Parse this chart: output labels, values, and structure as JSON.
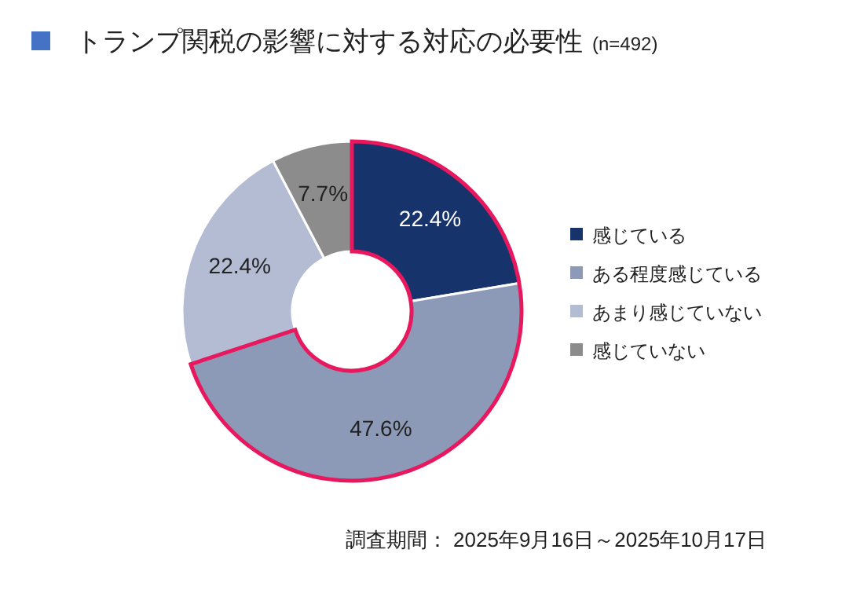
{
  "chart_data": {
    "type": "donut",
    "title": "トランプ関税の影響に対する対応の必要性",
    "subtitle": "(n=492)",
    "categories": [
      "感じている",
      "ある程度感じている",
      "あまり感じていない",
      "感じていない"
    ],
    "values": [
      22.4,
      47.6,
      22.4,
      7.7
    ],
    "colors": [
      "#17336b",
      "#8c9ab8",
      "#b4bcd3",
      "#8c8c8c"
    ],
    "value_labels": [
      "22.4%",
      "47.6%",
      "22.4%",
      "7.7%"
    ],
    "legend": "right",
    "annotations": [
      "調査期間： 2025年9月16日～2025年10月17日"
    ]
  }
}
